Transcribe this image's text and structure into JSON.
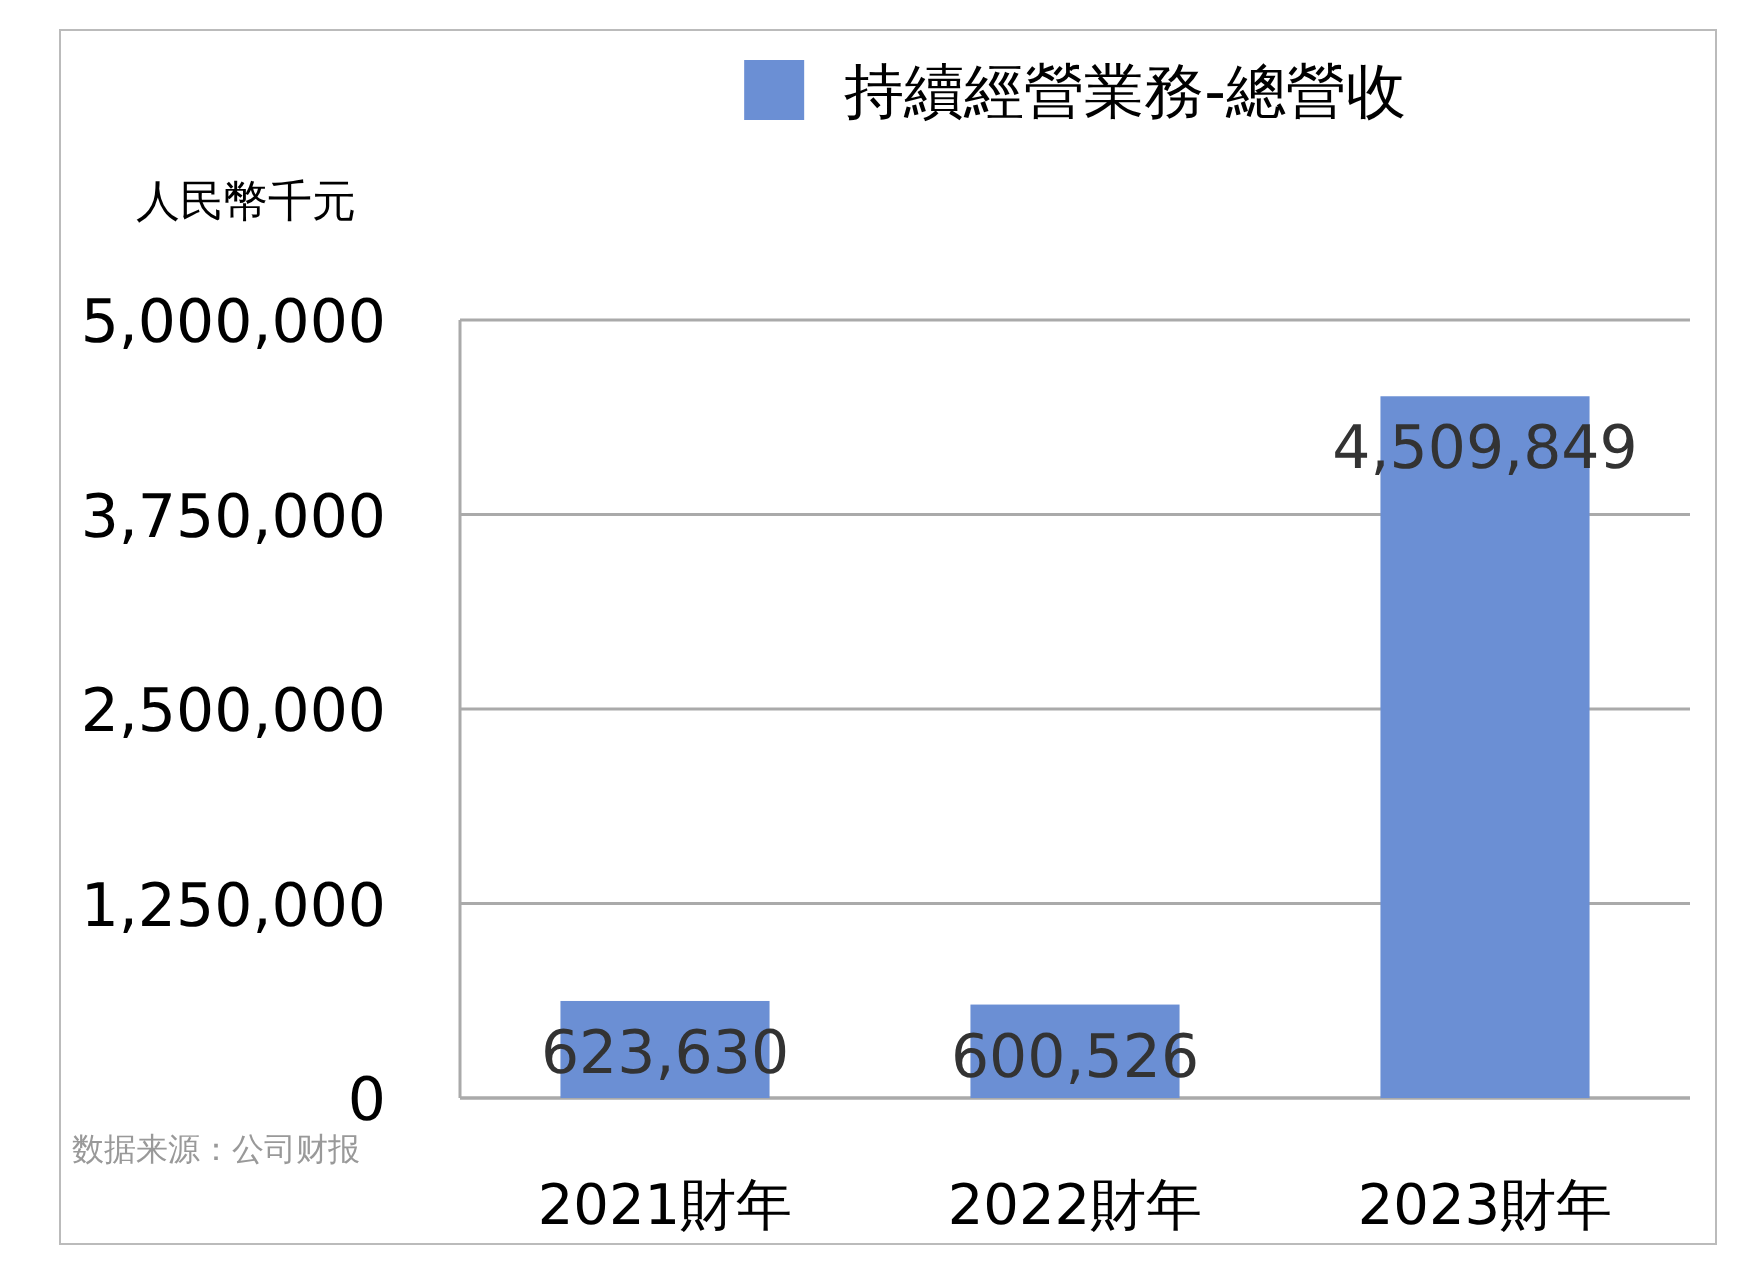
{
  "chart_data": {
    "type": "bar",
    "ylabel": "人民幣千元",
    "categories": [
      "2021財年",
      "2022財年",
      "2023財年"
    ],
    "series": [
      {
        "name": "持續經營業務-總營收",
        "color": "#6b8fd4",
        "values": [
          623630,
          600526,
          4509849
        ],
        "value_labels": [
          "623,630",
          "600,526",
          "4,509,849"
        ]
      }
    ],
    "ylim": [
      0,
      5000000
    ],
    "yticks": [
      {
        "value": 0,
        "label": "0"
      },
      {
        "value": 1250000,
        "label": "1,250,000"
      },
      {
        "value": 2500000,
        "label": "2,500,000"
      },
      {
        "value": 3750000,
        "label": "3,750,000"
      },
      {
        "value": 5000000,
        "label": "5,000,000"
      }
    ],
    "grid": "y",
    "legend": "top",
    "annotations": [
      "数据来源：公司财报"
    ]
  }
}
